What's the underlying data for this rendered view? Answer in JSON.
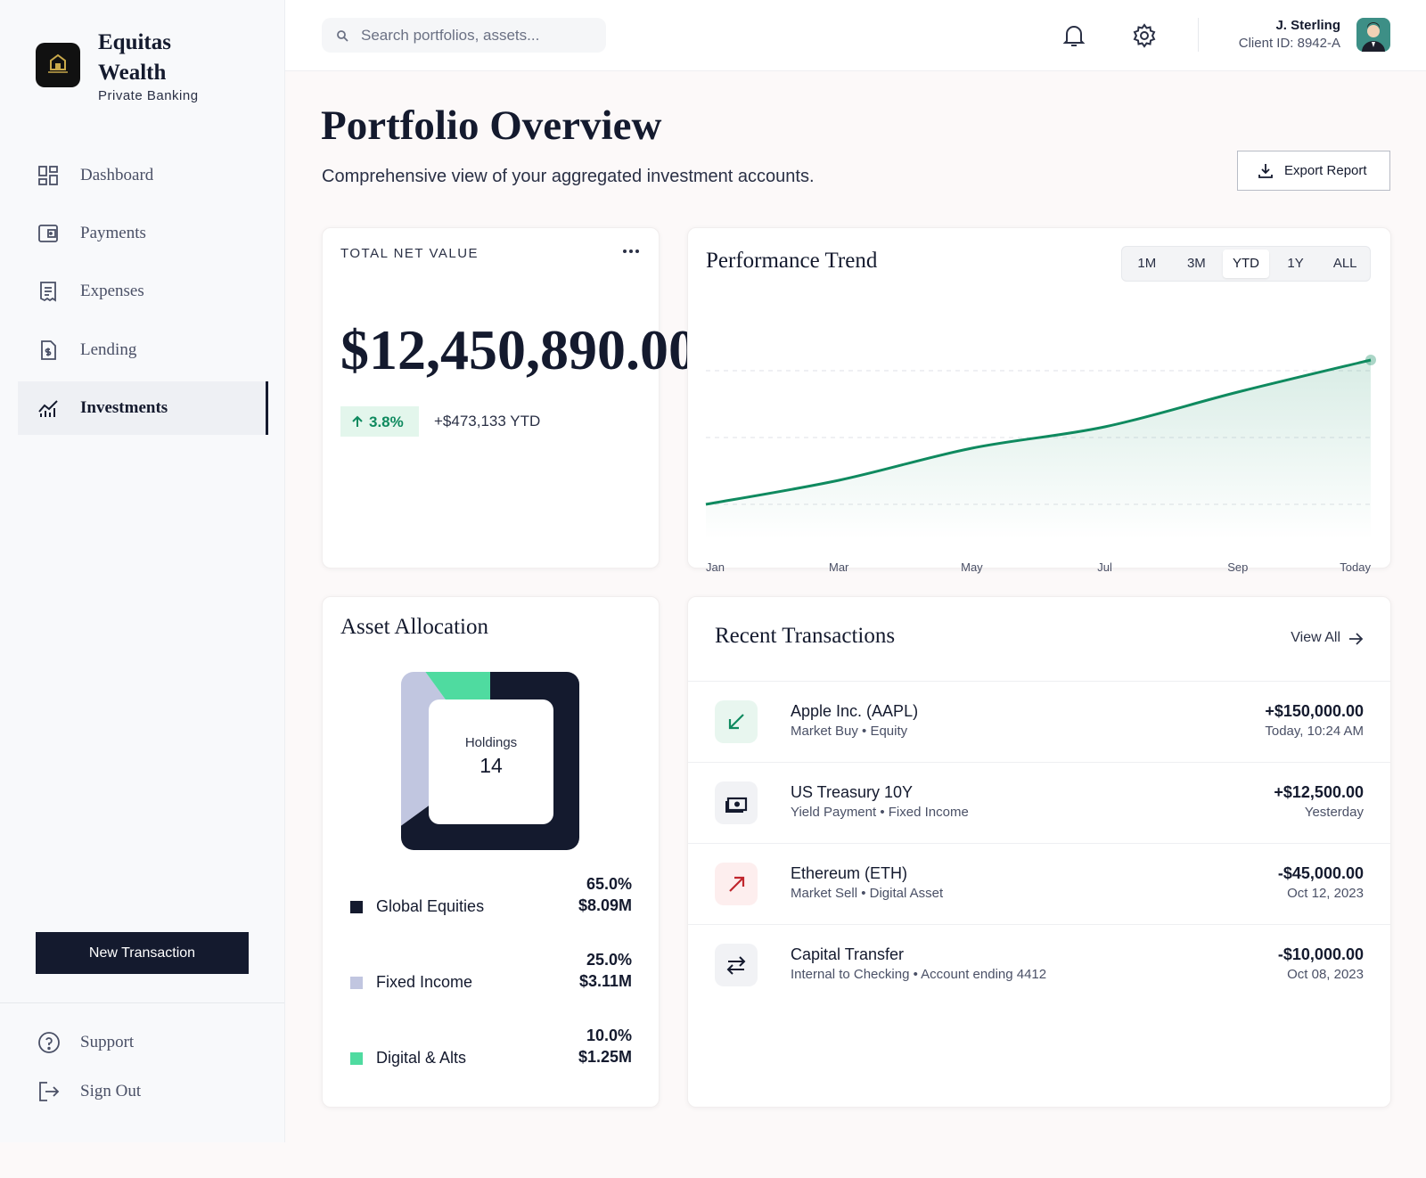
{
  "sidebar": {
    "brand_name": "Equitas Wealth",
    "brand_tagline": "Private Banking",
    "nav": [
      "Dashboard",
      "Payments",
      "Expenses",
      "Lending",
      "Investments"
    ],
    "new_transaction_button": "New Transaction",
    "footer_nav": [
      "Support",
      "Sign Out"
    ]
  },
  "header": {
    "search_placeholder": "Search portfolios, assets...",
    "user_name": "J. Sterling",
    "client_id": "Client ID: 8942-A"
  },
  "page": {
    "title": "Portfolio Overview",
    "subtitle": "Comprehensive view of your aggregated investment accounts.",
    "export_button": "Export Report"
  },
  "net_value": {
    "label": "TOTAL NET VALUE",
    "value": "$12,450,890.00",
    "change": "3.8%",
    "change_amount": "+$473,133 YTD"
  },
  "chart_data": [
    {
      "type": "line",
      "title": "Performance Trend",
      "ranges": [
        "1M",
        "3M",
        "YTD",
        "1Y",
        "ALL"
      ],
      "categories": [
        "Jan",
        "Mar",
        "May",
        "Jul",
        "Sep",
        "Today"
      ],
      "values": [
        25,
        34,
        46,
        54,
        67,
        79
      ],
      "color": "#0f8a5f",
      "ylim": [
        0,
        100
      ],
      "yticks": [
        25,
        50,
        75
      ],
      "grid": true
    },
    {
      "type": "donut",
      "title": "Asset Allocation",
      "center_label": "Holdings",
      "center_value": 14,
      "categories": [
        "Global Equities",
        "Fixed Income",
        "Digital & Alts"
      ],
      "values": [
        65,
        25,
        10
      ],
      "value_labels": [
        "65.0%",
        "25.0%",
        "10.0%"
      ],
      "amounts": [
        "$8.09M",
        "$3.11M",
        "$1.25M"
      ],
      "colors": [
        "#141a2e",
        "#c1c6e0",
        "#4fdba0"
      ]
    }
  ],
  "transactions": {
    "title": "Recent Transactions",
    "view_all": "View All",
    "items": [
      {
        "name": "Apple Inc. (AAPL)",
        "detail": "Market Buy • Equity",
        "amount": "+$150,000.00",
        "time": "Today, 10:24 AM"
      },
      {
        "name": "US Treasury 10Y",
        "detail": "Yield Payment • Fixed Income",
        "amount": "+$12,500.00",
        "time": "Yesterday"
      },
      {
        "name": "Ethereum (ETH)",
        "detail": "Market Sell • Digital Asset",
        "amount": "-$45,000.00",
        "time": "Oct 12, 2023"
      },
      {
        "name": "Capital Transfer",
        "detail": "Internal to Checking • Account ending 4412",
        "amount": "-$10,000.00",
        "time": "Oct 08, 2023"
      }
    ]
  }
}
